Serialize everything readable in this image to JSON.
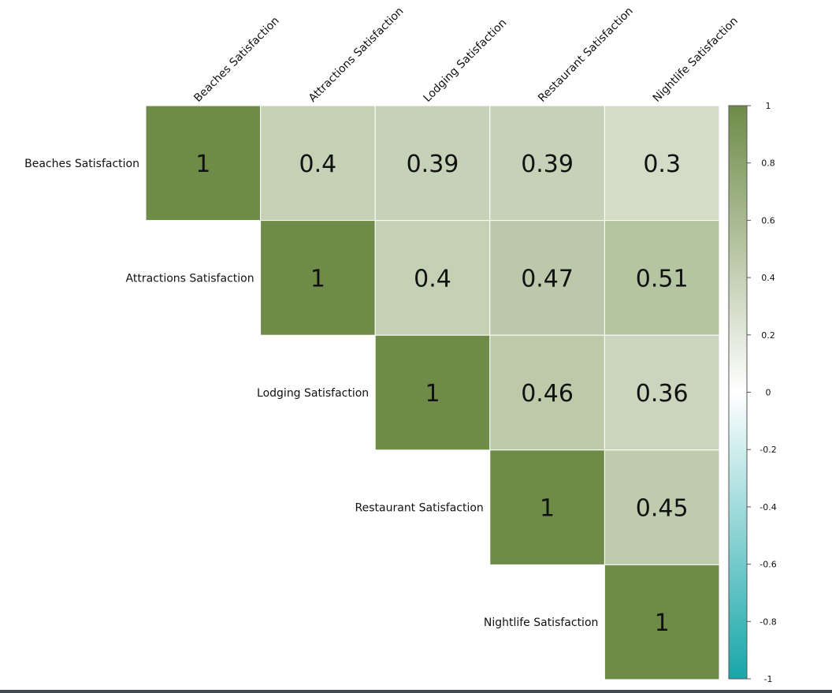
{
  "chart_data": {
    "type": "heatmap",
    "title": "",
    "layout": "upper-triangle",
    "variables": [
      "Beaches Satisfaction",
      "Attractions Satisfaction",
      "Lodging Satisfaction",
      "Restaurant Satisfaction",
      "Nightlife Satisfaction"
    ],
    "matrix": [
      [
        1,
        0.4,
        0.39,
        0.39,
        0.3
      ],
      [
        null,
        1,
        0.4,
        0.47,
        0.51
      ],
      [
        null,
        null,
        1,
        0.46,
        0.36
      ],
      [
        null,
        null,
        null,
        1,
        0.45
      ],
      [
        null,
        null,
        null,
        null,
        1
      ]
    ],
    "colorbar": {
      "range": [
        -1,
        1
      ],
      "ticks": [
        "1",
        "0.8",
        "0.6",
        "0.4",
        "0.2",
        "0",
        "-0.2",
        "-0.4",
        "-0.6",
        "-0.8",
        "-1"
      ],
      "tick_values": [
        1,
        0.8,
        0.6,
        0.4,
        0.2,
        0,
        -0.2,
        -0.4,
        -0.6,
        -0.8,
        -1
      ],
      "color_high": "#6e8b47",
      "color_mid": "#ffffff",
      "color_low": "#17a6a8"
    }
  }
}
